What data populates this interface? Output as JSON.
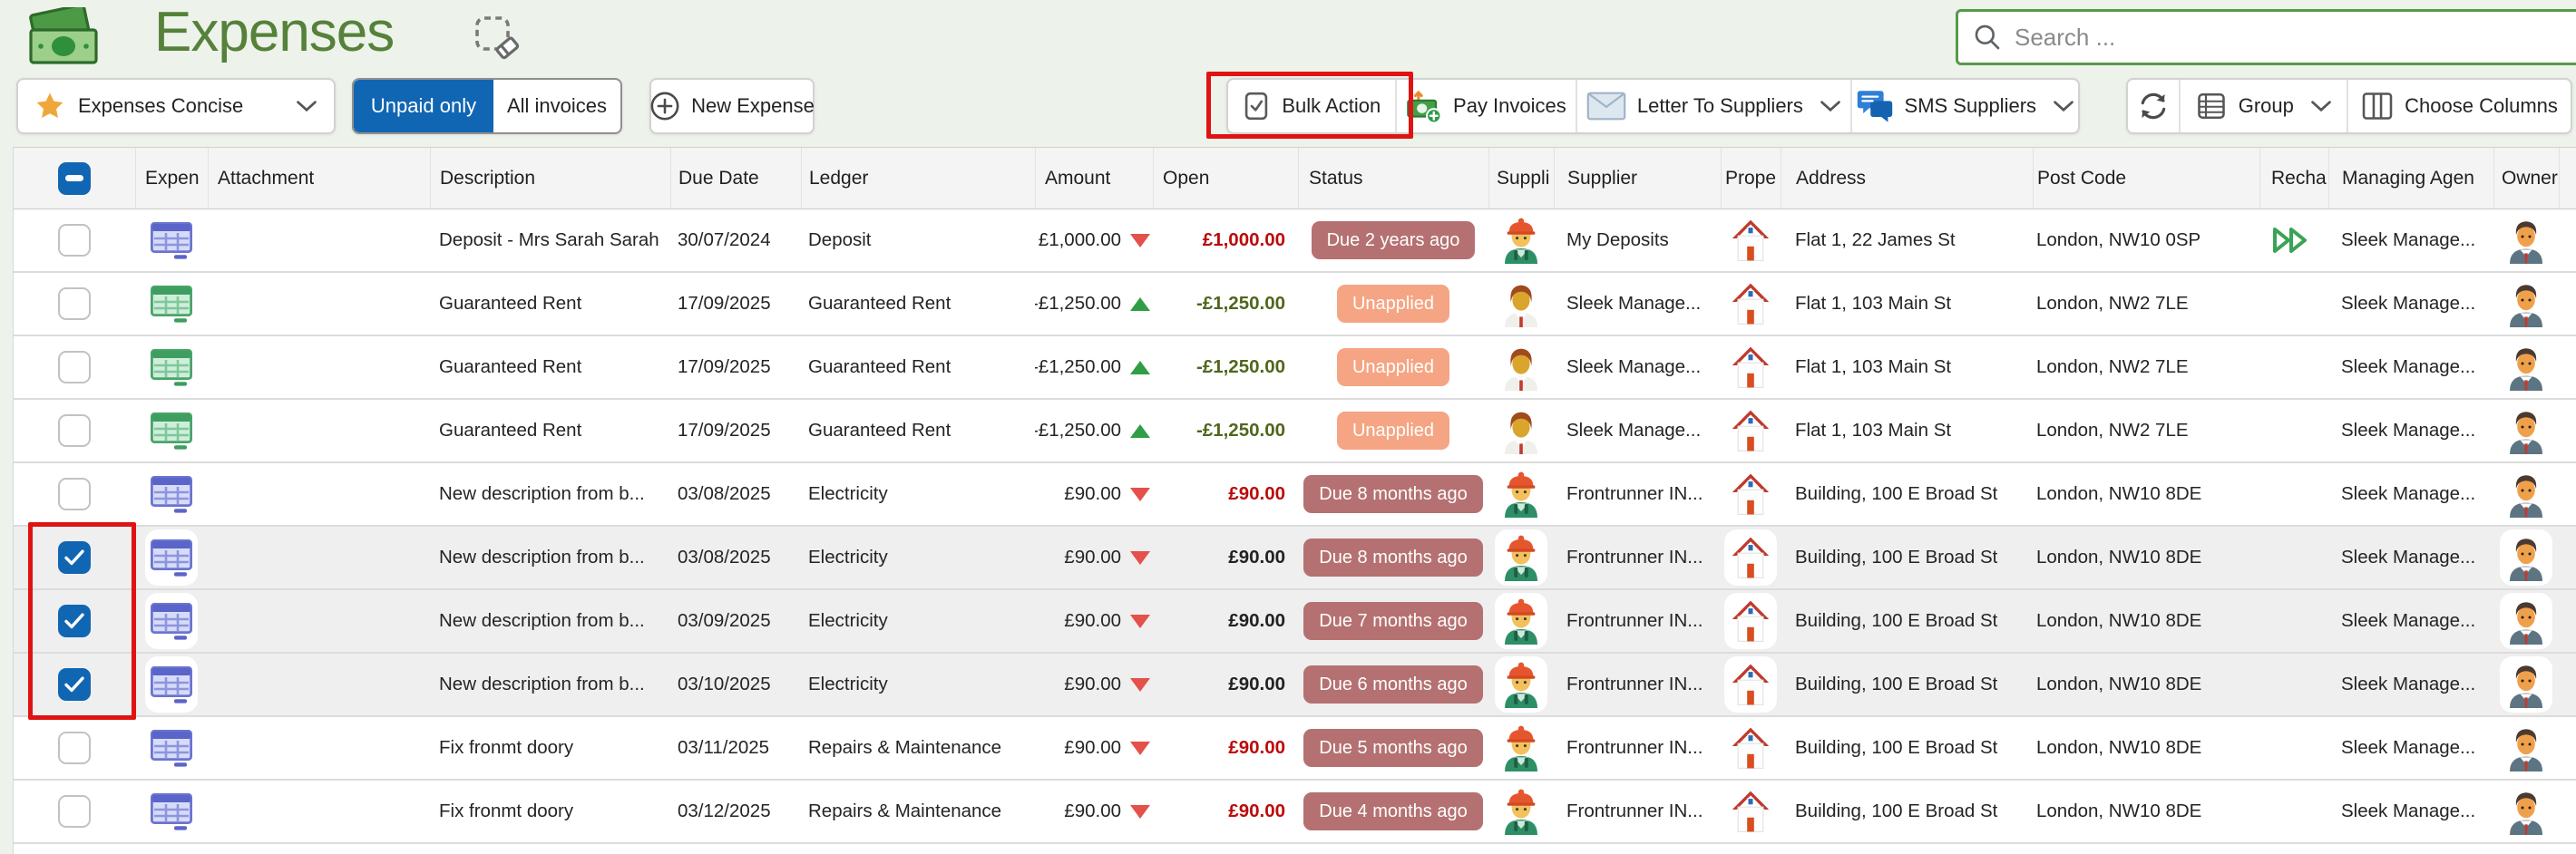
{
  "page": {
    "title": "Expenses",
    "search_placeholder": "Search ..."
  },
  "toolbar": {
    "view_dropdown": "Expenses Concise",
    "unpaid_only": "Unpaid only",
    "all_invoices": "All invoices",
    "unpaid_only_active": true,
    "new_expense": "New Expense",
    "bulk_action": "Bulk Action",
    "pay_invoices": "Pay Invoices",
    "letter_to_suppliers": "Letter To Suppliers",
    "sms_suppliers": "SMS Suppliers",
    "group": "Group",
    "choose_columns": "Choose Columns"
  },
  "annotations": {
    "bulk_action_highlighted": true,
    "selected_checkboxes_highlighted": true
  },
  "colors": {
    "accent_blue": "#1166b3",
    "title_green": "#55813a",
    "badge_due": "#b57171",
    "badge_unapplied": "#f5a583",
    "open_red": "#bb0b0b",
    "open_green": "#50661c",
    "annotation_red": "#e01313"
  },
  "table": {
    "columns": [
      {
        "key": "select",
        "label": ""
      },
      {
        "key": "expen",
        "label": "Expen"
      },
      {
        "key": "attachment",
        "label": "Attachment"
      },
      {
        "key": "description",
        "label": "Description"
      },
      {
        "key": "due_date",
        "label": "Due Date"
      },
      {
        "key": "ledger",
        "label": "Ledger"
      },
      {
        "key": "amount",
        "label": "Amount"
      },
      {
        "key": "open",
        "label": "Open"
      },
      {
        "key": "status",
        "label": "Status"
      },
      {
        "key": "suppli",
        "label": "Suppli"
      },
      {
        "key": "supplier",
        "label": "Supplier"
      },
      {
        "key": "prope",
        "label": "Prope"
      },
      {
        "key": "address",
        "label": "Address"
      },
      {
        "key": "post_code",
        "label": "Post Code"
      },
      {
        "key": "recha",
        "label": "Recha"
      },
      {
        "key": "managing_agent",
        "label": "Managing Agen"
      },
      {
        "key": "owner",
        "label": "Owner"
      },
      {
        "key": "clipped",
        "label": ""
      }
    ],
    "rows": [
      {
        "checked": false,
        "selected": false,
        "expen_icon": "invoice-blue",
        "description": "Deposit - Mrs Sarah Sarah",
        "due_date": "30/07/2024",
        "ledger": "Deposit",
        "amount": "£1,000.00",
        "amount_trend": "down",
        "open": "£1,000.00",
        "open_style": "red",
        "status": "Due 2 years ago",
        "status_style": "due",
        "supplier_icon": "worker",
        "supplier": "My Deposits",
        "address": "Flat 1, 22 James St",
        "post_code": "London, NW10 0SP",
        "recharge": true,
        "managing_agent": "Sleek Manage..."
      },
      {
        "checked": false,
        "selected": false,
        "expen_icon": "invoice-green",
        "description": "Guaranteed Rent",
        "due_date": "17/09/2025",
        "ledger": "Guaranteed Rent",
        "amount": "-£1,250.00",
        "amount_trend": "up",
        "open": "-£1,250.00",
        "open_style": "green",
        "status": "Unapplied",
        "status_style": "unapplied",
        "supplier_icon": "person",
        "supplier": "Sleek Manage...",
        "address": "Flat 1, 103 Main St",
        "post_code": "London, NW2 7LE",
        "recharge": false,
        "managing_agent": "Sleek Manage..."
      },
      {
        "checked": false,
        "selected": false,
        "expen_icon": "invoice-green",
        "description": "Guaranteed Rent",
        "due_date": "17/09/2025",
        "ledger": "Guaranteed Rent",
        "amount": "-£1,250.00",
        "amount_trend": "up",
        "open": "-£1,250.00",
        "open_style": "green",
        "status": "Unapplied",
        "status_style": "unapplied",
        "supplier_icon": "person",
        "supplier": "Sleek Manage...",
        "address": "Flat 1, 103 Main St",
        "post_code": "London, NW2 7LE",
        "recharge": false,
        "managing_agent": "Sleek Manage..."
      },
      {
        "checked": false,
        "selected": false,
        "expen_icon": "invoice-green",
        "description": "Guaranteed Rent",
        "due_date": "17/09/2025",
        "ledger": "Guaranteed Rent",
        "amount": "-£1,250.00",
        "amount_trend": "up",
        "open": "-£1,250.00",
        "open_style": "green",
        "status": "Unapplied",
        "status_style": "unapplied",
        "supplier_icon": "person",
        "supplier": "Sleek Manage...",
        "address": "Flat 1, 103 Main St",
        "post_code": "London, NW2 7LE",
        "recharge": false,
        "managing_agent": "Sleek Manage..."
      },
      {
        "checked": false,
        "selected": false,
        "expen_icon": "invoice-blue",
        "description": "New description from b...",
        "due_date": "03/08/2025",
        "ledger": "Electricity",
        "amount": "£90.00",
        "amount_trend": "down",
        "open": "£90.00",
        "open_style": "red",
        "status": "Due 8 months ago",
        "status_style": "due",
        "supplier_icon": "worker",
        "supplier": "Frontrunner IN...",
        "address": "Building, 100 E Broad St",
        "post_code": "London, NW10 8DE",
        "recharge": false,
        "managing_agent": "Sleek Manage..."
      },
      {
        "checked": true,
        "selected": true,
        "expen_icon": "invoice-blue",
        "description": "New description from b...",
        "due_date": "03/08/2025",
        "ledger": "Electricity",
        "amount": "£90.00",
        "amount_trend": "down",
        "open": "£90.00",
        "open_style": "dark",
        "status": "Due 8 months ago",
        "status_style": "due",
        "supplier_icon": "worker",
        "supplier": "Frontrunner IN...",
        "address": "Building, 100 E Broad St",
        "post_code": "London, NW10 8DE",
        "recharge": false,
        "managing_agent": "Sleek Manage..."
      },
      {
        "checked": true,
        "selected": true,
        "expen_icon": "invoice-blue",
        "description": "New description from b...",
        "due_date": "03/09/2025",
        "ledger": "Electricity",
        "amount": "£90.00",
        "amount_trend": "down",
        "open": "£90.00",
        "open_style": "dark",
        "status": "Due 7 months ago",
        "status_style": "due",
        "supplier_icon": "worker",
        "supplier": "Frontrunner IN...",
        "address": "Building, 100 E Broad St",
        "post_code": "London, NW10 8DE",
        "recharge": false,
        "managing_agent": "Sleek Manage..."
      },
      {
        "checked": true,
        "selected": true,
        "expen_icon": "invoice-blue",
        "description": "New description from b...",
        "due_date": "03/10/2025",
        "ledger": "Electricity",
        "amount": "£90.00",
        "amount_trend": "down",
        "open": "£90.00",
        "open_style": "dark",
        "status": "Due 6 months ago",
        "status_style": "due",
        "supplier_icon": "worker",
        "supplier": "Frontrunner IN...",
        "address": "Building, 100 E Broad St",
        "post_code": "London, NW10 8DE",
        "recharge": false,
        "managing_agent": "Sleek Manage..."
      },
      {
        "checked": false,
        "selected": false,
        "expen_icon": "invoice-blue",
        "description": "Fix fronmt doory",
        "due_date": "03/11/2025",
        "ledger": "Repairs & Maintenance",
        "amount": "£90.00",
        "amount_trend": "down",
        "open": "£90.00",
        "open_style": "red",
        "status": "Due 5 months ago",
        "status_style": "due",
        "supplier_icon": "worker",
        "supplier": "Frontrunner IN...",
        "address": "Building, 100 E Broad St",
        "post_code": "London, NW10 8DE",
        "recharge": false,
        "managing_agent": "Sleek Manage..."
      },
      {
        "checked": false,
        "selected": false,
        "expen_icon": "invoice-blue",
        "description": "Fix fronmt doory",
        "due_date": "03/12/2025",
        "ledger": "Repairs & Maintenance",
        "amount": "£90.00",
        "amount_trend": "down",
        "open": "£90.00",
        "open_style": "red",
        "status": "Due 4 months ago",
        "status_style": "due",
        "supplier_icon": "worker",
        "supplier": "Frontrunner IN...",
        "address": "Building, 100 E Broad St",
        "post_code": "London, NW10 8DE",
        "recharge": false,
        "managing_agent": "Sleek Manage..."
      }
    ]
  }
}
